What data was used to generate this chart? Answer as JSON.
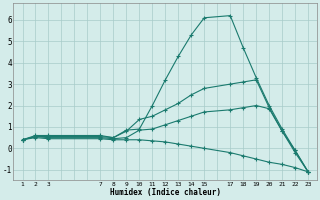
{
  "xlabel": "Humidex (Indice chaleur)",
  "bg_color": "#d4ecea",
  "grid_color": "#a8ccca",
  "line_color": "#1a7a6e",
  "x_labels": [
    1,
    2,
    3,
    7,
    8,
    9,
    10,
    11,
    12,
    13,
    14,
    15,
    17,
    18,
    19,
    20,
    21,
    22,
    23
  ],
  "lines": [
    {
      "x": [
        1,
        2,
        3,
        7,
        8,
        9,
        10,
        11,
        12,
        13,
        14,
        15,
        17,
        18,
        19,
        20,
        21,
        22,
        23
      ],
      "y": [
        0.4,
        0.6,
        0.6,
        0.6,
        0.5,
        0.85,
        0.9,
        2.0,
        3.2,
        4.3,
        5.3,
        6.1,
        6.2,
        4.7,
        3.3,
        2.0,
        0.9,
        -0.1,
        -1.1
      ]
    },
    {
      "x": [
        1,
        2,
        3,
        7,
        8,
        9,
        10,
        11,
        12,
        13,
        14,
        15,
        17,
        18,
        19,
        20,
        21,
        22,
        23
      ],
      "y": [
        0.4,
        0.55,
        0.55,
        0.55,
        0.5,
        0.8,
        1.35,
        1.5,
        1.8,
        2.1,
        2.5,
        2.8,
        3.0,
        3.1,
        3.2,
        1.9,
        0.8,
        -0.1,
        -1.1
      ]
    },
    {
      "x": [
        1,
        2,
        3,
        7,
        8,
        9,
        10,
        11,
        12,
        13,
        14,
        15,
        17,
        18,
        19,
        20,
        21,
        22,
        23
      ],
      "y": [
        0.4,
        0.55,
        0.5,
        0.5,
        0.45,
        0.5,
        0.85,
        0.9,
        1.1,
        1.3,
        1.5,
        1.7,
        1.8,
        1.9,
        2.0,
        1.85,
        0.8,
        -0.2,
        -1.1
      ]
    },
    {
      "x": [
        1,
        2,
        3,
        7,
        8,
        9,
        10,
        11,
        12,
        13,
        14,
        15,
        17,
        18,
        19,
        20,
        21,
        22,
        23
      ],
      "y": [
        0.4,
        0.5,
        0.45,
        0.45,
        0.4,
        0.4,
        0.4,
        0.35,
        0.3,
        0.2,
        0.1,
        0.0,
        -0.2,
        -0.35,
        -0.5,
        -0.65,
        -0.75,
        -0.9,
        -1.1
      ]
    }
  ],
  "ylim": [
    -1.5,
    6.8
  ],
  "yticks": [
    -1,
    0,
    1,
    2,
    3,
    4,
    5,
    6
  ],
  "xlim": [
    0.3,
    23.7
  ],
  "grid_xticks": [
    1,
    2,
    3,
    4,
    5,
    6,
    7,
    8,
    9,
    10,
    11,
    12,
    13,
    14,
    15,
    16,
    17,
    18,
    19,
    20,
    21,
    22,
    23
  ],
  "marker": "+"
}
